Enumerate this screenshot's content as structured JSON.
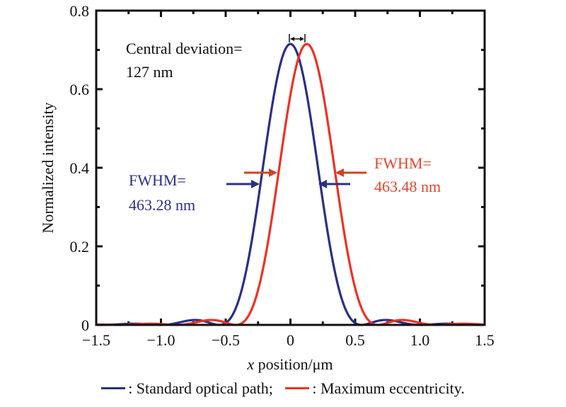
{
  "chart_data": {
    "type": "line",
    "title": "",
    "xlabel_italic": "x",
    "xlabel_rest": " position/μm",
    "ylabel": "Normalized intensity",
    "xlim": [
      -1.5,
      1.5
    ],
    "ylim": [
      0,
      0.8
    ],
    "x_ticks": [
      -1.5,
      -1.0,
      -0.5,
      0,
      0.5,
      1.0,
      1.5
    ],
    "x_tick_labels": [
      "−1.5",
      "−1.0",
      "−0.5",
      "0",
      "0.5",
      "1.0",
      "1.5"
    ],
    "x_minor_ticks": [
      -1.25,
      -0.75,
      -0.25,
      0.25,
      0.75,
      1.25
    ],
    "y_ticks": [
      0,
      0.2,
      0.4,
      0.6,
      0.8
    ],
    "y_tick_labels": [
      "0",
      "0.2",
      "0.4",
      "0.6",
      "0.8"
    ],
    "y_minor_ticks": [
      0.1,
      0.3,
      0.5,
      0.7
    ],
    "grid": false,
    "series": [
      {
        "name": "Standard optical path",
        "color": "#2b2f86",
        "center": 0.0,
        "peak": 0.715,
        "fwhm_um": 0.46328
      },
      {
        "name": "Maximum eccentricity",
        "color": "#ee3124",
        "center": 0.127,
        "peak": 0.715,
        "fwhm_um": 0.46348
      }
    ],
    "annotations": {
      "central_deviation": {
        "line1": "Central deviation=",
        "line2": "127 nm",
        "color": "#111111"
      },
      "fwhm_standard": {
        "line1": "FWHM=",
        "line2": "463.28 nm",
        "color": "#2b2f86"
      },
      "fwhm_eccentric": {
        "line1": "FWHM=",
        "line2": "463.48 nm",
        "color": "#e8452c"
      }
    },
    "legend": {
      "placement": "bottom",
      "items": [
        {
          "label": ": Standard optical path;",
          "color": "#2b2f86"
        },
        {
          "label": ": Maximum eccentricity.",
          "color": "#ee3124"
        }
      ]
    }
  }
}
